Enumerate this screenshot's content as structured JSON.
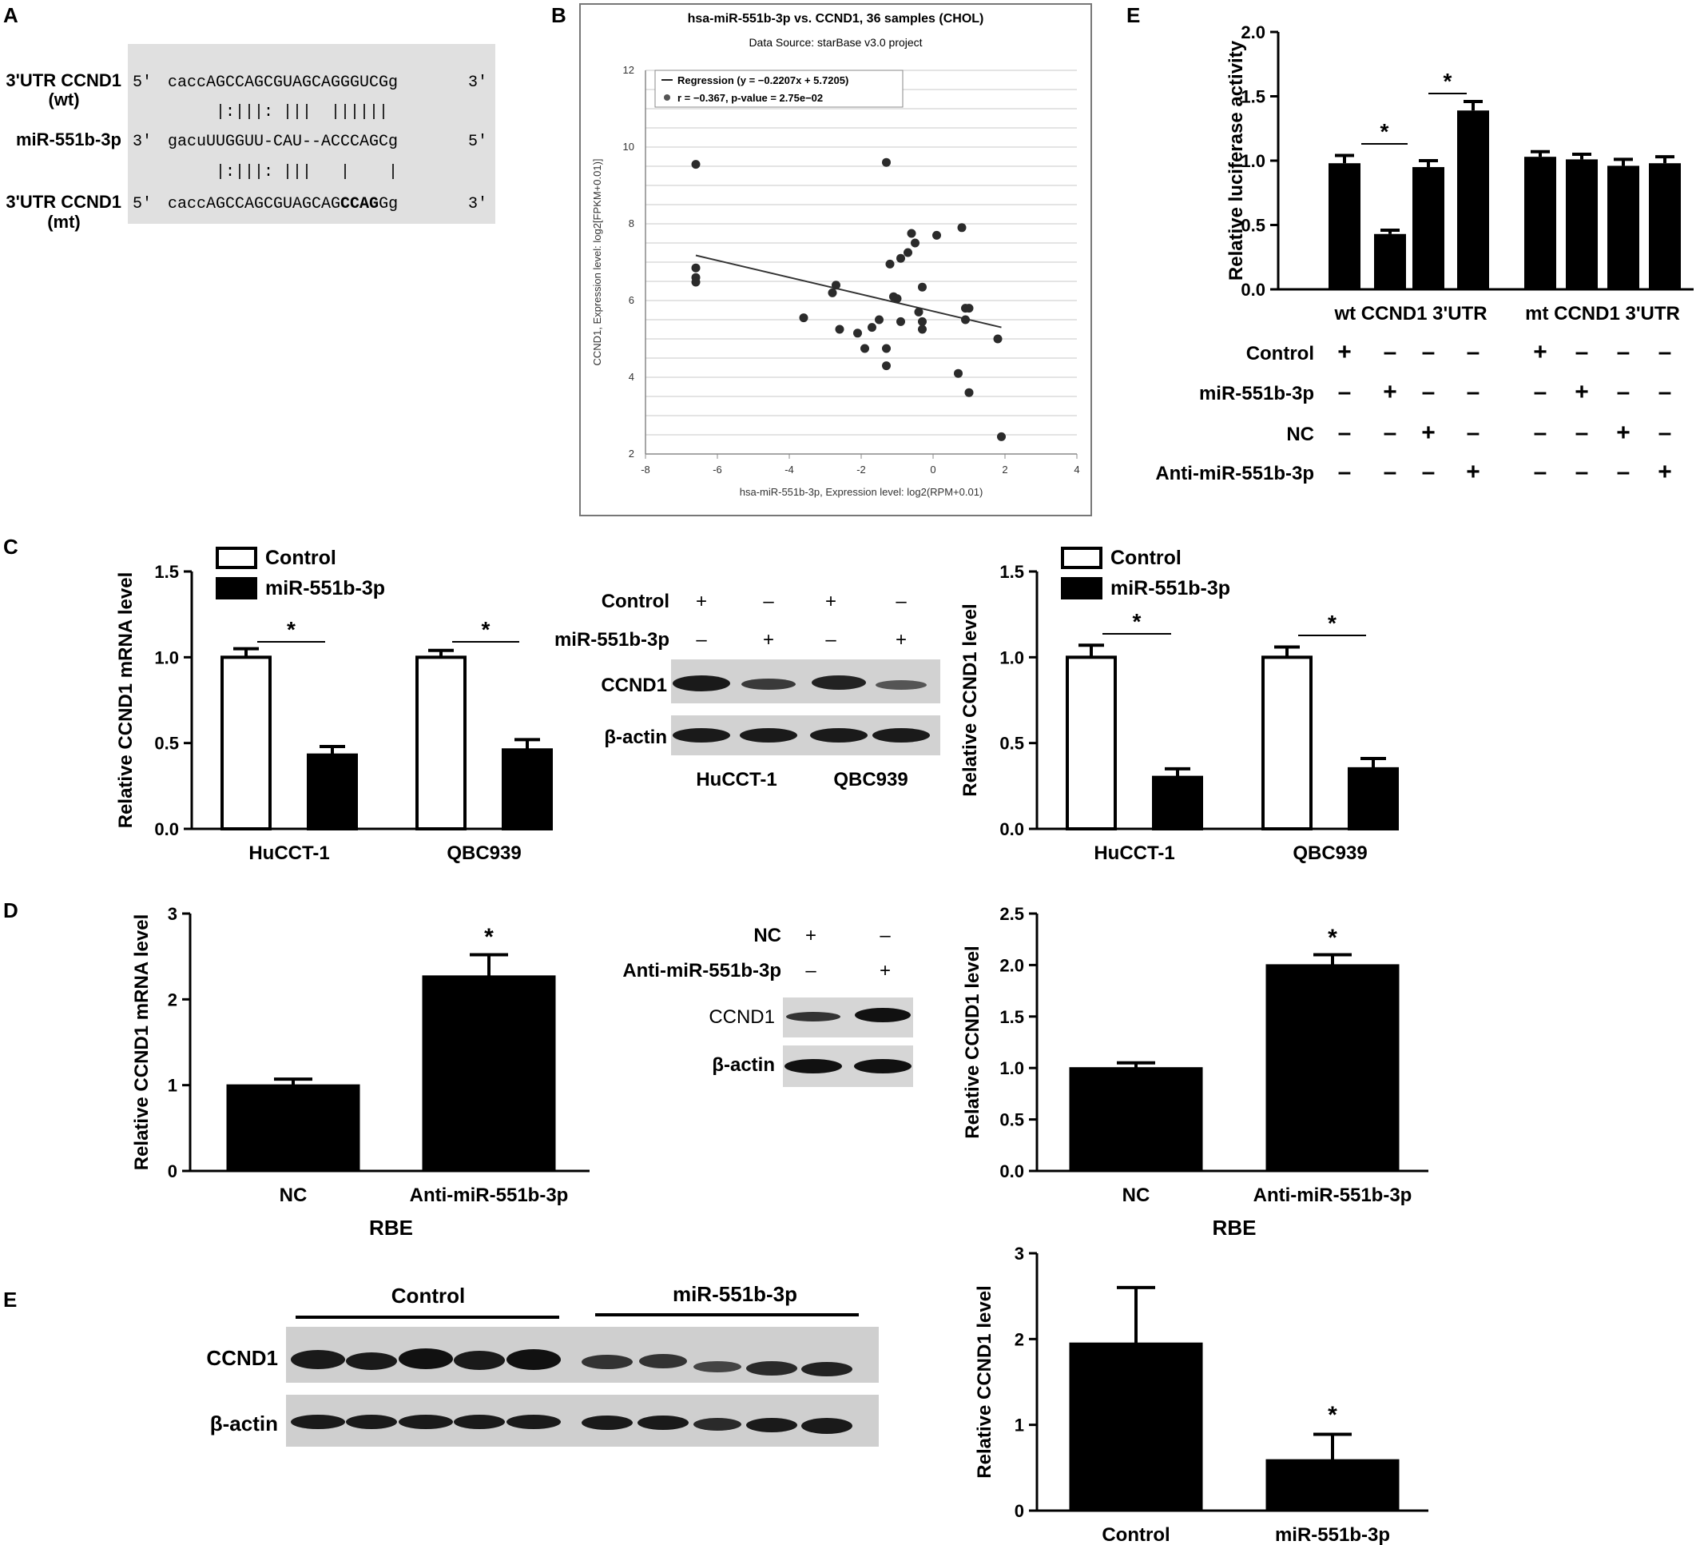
{
  "panel_labels": [
    "A",
    "B",
    "C",
    "D",
    "E",
    "E"
  ],
  "colors": {
    "bar_fill": "#000000",
    "open_bar": "#ffffff",
    "seq_box": "#e0e0e0",
    "scatter_point": "#2b2b2b",
    "grid": "#c8c8c8"
  },
  "panelA": {
    "row1_label": "3'UTR CCND1",
    "row1_sub": "(wt)",
    "row1_p5": "5'",
    "row1_seq_a": "cacc",
    "row1_seq_b": "AGCCAGCGUAGCAGGGUCGg",
    "row1_p3": "3'",
    "pair1": "|:|||: |||  ||||||",
    "row2_label": "miR-551b-3p",
    "row2_p3": "3'",
    "row2_seq": "gacuUUGGUU-CAU--ACCCAGCg",
    "row2_p5": "5'",
    "pair2": "|:|||: |||   |    |",
    "row3_label": "3'UTR CCND1",
    "row3_sub": "(mt)",
    "row3_p5": "5'",
    "row3_seq_a": "caccAGCCAGCGUAGCAG",
    "row3_seq_bold": "CCAG",
    "row3_seq_c": "Gg",
    "row3_p3": "3'"
  },
  "blots": {
    "C": {
      "labels": [
        "Control",
        "miR-551b-3p"
      ],
      "row1_signs": [
        "+",
        "–",
        "+",
        "–"
      ],
      "row2_signs": [
        "–",
        "+",
        "–",
        "+"
      ],
      "bands": [
        "CCND1",
        "β-actin"
      ],
      "cells": [
        "HuCCT-1",
        "QBC939"
      ]
    },
    "D": {
      "labels": [
        "NC",
        "Anti-miR-551b-3p"
      ],
      "row1_signs": [
        "+",
        "–"
      ],
      "row2_signs": [
        "–",
        "+"
      ],
      "bands": [
        "CCND1",
        "β-actin"
      ]
    },
    "E": {
      "groups": [
        "Control",
        "miR-551b-3p"
      ],
      "bands": [
        "CCND1",
        "β-actin"
      ]
    }
  },
  "chart_data": [
    {
      "id": "B",
      "type": "scatter",
      "title": "hsa-miR-551b-3p vs. CCND1, 36 samples (CHOL)",
      "subtitle": "Data Source: starBase v3.0 project",
      "xlabel": "hsa-miR-551b-3p, Expression level: log2(RPM+0.01)",
      "ylabel": "CCND1, Expression level: log2[FPKM+0.01)]",
      "xlim": [
        -8,
        4
      ],
      "ylim": [
        2,
        12
      ],
      "xticks": [
        "-8",
        "-6",
        "-4",
        "-2",
        "0",
        "2",
        "4"
      ],
      "yticks": [
        "2",
        "4",
        "6",
        "8",
        "10",
        "12"
      ],
      "grid": true,
      "legend": {
        "regression": "Regression (y = −0.2207x + 5.7205)",
        "stat": "r = −0.367, p-value = 2.75e−02",
        "placement": "top"
      },
      "regression": {
        "slope": -0.2207,
        "intercept": 5.7205,
        "x_range": [
          -6.6,
          1.9
        ]
      },
      "points": [
        [
          -6.6,
          9.55
        ],
        [
          -6.6,
          6.85
        ],
        [
          -6.6,
          6.6
        ],
        [
          -6.6,
          6.48
        ],
        [
          -1.3,
          9.6
        ],
        [
          -3.6,
          5.55
        ],
        [
          -2.8,
          6.2
        ],
        [
          -2.7,
          6.4
        ],
        [
          -2.6,
          5.25
        ],
        [
          -2.1,
          5.15
        ],
        [
          -1.9,
          4.75
        ],
        [
          -1.7,
          5.3
        ],
        [
          -1.5,
          5.5
        ],
        [
          -1.3,
          4.3
        ],
        [
          -1.3,
          4.75
        ],
        [
          -1.2,
          6.95
        ],
        [
          -1.1,
          6.1
        ],
        [
          -1.0,
          6.05
        ],
        [
          -0.9,
          7.1
        ],
        [
          -0.7,
          7.25
        ],
        [
          -0.6,
          7.75
        ],
        [
          -0.5,
          7.5
        ],
        [
          -0.4,
          5.7
        ],
        [
          -0.3,
          5.25
        ],
        [
          -0.3,
          5.45
        ],
        [
          -0.3,
          6.35
        ],
        [
          0.1,
          7.7
        ],
        [
          0.7,
          4.1
        ],
        [
          0.8,
          7.9
        ],
        [
          0.9,
          5.8
        ],
        [
          0.9,
          5.5
        ],
        [
          1.0,
          5.8
        ],
        [
          1.0,
          3.6
        ],
        [
          1.8,
          5.0
        ],
        [
          1.9,
          2.45
        ],
        [
          -0.9,
          5.45
        ]
      ]
    },
    {
      "id": "E-luciferase",
      "type": "bar",
      "ylabel": "Relative luciferase activity",
      "ylim": [
        0,
        2.0
      ],
      "yticks": [
        "0.0",
        "0.5",
        "1.0",
        "1.5",
        "2.0"
      ],
      "groups": [
        "wt CCND1 3'UTR",
        "mt CCND1 3'UTR"
      ],
      "values": [
        0.98,
        0.43,
        0.95,
        1.39,
        1.03,
        1.01,
        0.96,
        0.98
      ],
      "errors": [
        0.06,
        0.03,
        0.05,
        0.07,
        0.04,
        0.04,
        0.05,
        0.05
      ],
      "significance": "*",
      "condition_rows": [
        {
          "label": "Control",
          "signs": [
            "+",
            "–",
            "–",
            "–",
            "+",
            "–",
            "–",
            "–"
          ]
        },
        {
          "label": "miR-551b-3p",
          "signs": [
            "–",
            "+",
            "–",
            "–",
            "–",
            "+",
            "–",
            "–"
          ]
        },
        {
          "label": "NC",
          "signs": [
            "–",
            "–",
            "+",
            "–",
            "–",
            "–",
            "+",
            "–"
          ]
        },
        {
          "label": "Anti-miR-551b-3p",
          "signs": [
            "–",
            "–",
            "–",
            "+",
            "–",
            "–",
            "–",
            "+"
          ]
        }
      ]
    },
    {
      "id": "C-mRNA",
      "type": "bar",
      "ylabel": "Relative CCND1 mRNA level",
      "ylim": [
        0,
        1.5
      ],
      "yticks": [
        "0.0",
        "0.5",
        "1.0",
        "1.5"
      ],
      "categories": [
        "HuCCT-1",
        "QBC939"
      ],
      "series": [
        {
          "name": "Control",
          "values": [
            1.0,
            1.0
          ],
          "errors": [
            0.05,
            0.04
          ]
        },
        {
          "name": "miR-551b-3p",
          "values": [
            0.43,
            0.46
          ],
          "errors": [
            0.05,
            0.06
          ]
        }
      ],
      "significance": "*"
    },
    {
      "id": "C-protein",
      "type": "bar",
      "ylabel": "Relative CCND1 level",
      "ylim": [
        0,
        1.5
      ],
      "yticks": [
        "0.0",
        "0.5",
        "1.0",
        "1.5"
      ],
      "categories": [
        "HuCCT-1",
        "QBC939"
      ],
      "series": [
        {
          "name": "Control",
          "values": [
            1.0,
            1.0
          ],
          "errors": [
            0.07,
            0.06
          ]
        },
        {
          "name": "miR-551b-3p",
          "values": [
            0.3,
            0.35
          ],
          "errors": [
            0.05,
            0.06
          ]
        }
      ],
      "significance": "*"
    },
    {
      "id": "D-mRNA",
      "type": "bar",
      "ylabel": "Relative CCND1 mRNA level",
      "xlabel": "RBE",
      "ylim": [
        0,
        3
      ],
      "yticks": [
        "0",
        "1",
        "2",
        "3"
      ],
      "categories": [
        "NC",
        "Anti-miR-551b-3p"
      ],
      "values": [
        1.0,
        2.27
      ],
      "errors": [
        0.07,
        0.25
      ],
      "significance": "*"
    },
    {
      "id": "D-protein",
      "type": "bar",
      "ylabel": "Relative CCND1 level",
      "xlabel": "RBE",
      "ylim": [
        0,
        2.5
      ],
      "yticks": [
        "0.0",
        "0.5",
        "1.0",
        "1.5",
        "2.0",
        "2.5"
      ],
      "categories": [
        "NC",
        "Anti-miR-551b-3p"
      ],
      "values": [
        1.0,
        2.0
      ],
      "errors": [
        0.05,
        0.1
      ],
      "significance": "*"
    },
    {
      "id": "E-protein",
      "type": "bar",
      "ylabel": "Relative CCND1 level",
      "ylim": [
        0,
        3
      ],
      "yticks": [
        "0",
        "1",
        "2",
        "3"
      ],
      "categories": [
        "Control",
        "miR-551b-3p"
      ],
      "values": [
        1.95,
        0.59
      ],
      "errors": [
        0.65,
        0.3
      ],
      "significance": "*"
    }
  ]
}
